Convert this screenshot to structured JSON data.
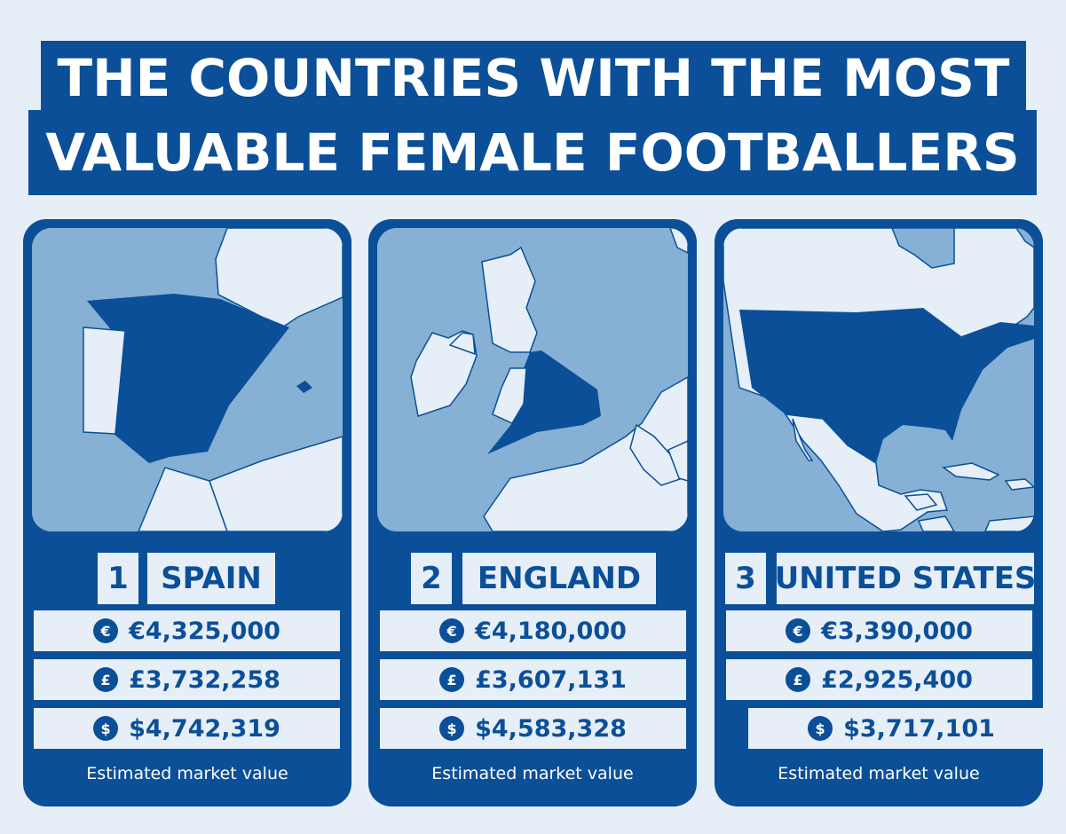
{
  "title": {
    "line1": "THE COUNTRIES WITH THE MOST",
    "line2": "VALUABLE FEMALE FOOTBALLERS"
  },
  "colors": {
    "primary": "#0b4f98",
    "background": "#e6eef7",
    "sea": "#86b0d4",
    "land": "#e6eef7",
    "highlight": "#0b4f98"
  },
  "cards": [
    {
      "rank": "1",
      "country": "SPAIN",
      "euro": "€4,325,000",
      "pound": "£3,732,258",
      "dollar": "$4,742,319",
      "caption": "Estimated market value"
    },
    {
      "rank": "2",
      "country": "ENGLAND",
      "euro": "€4,180,000",
      "pound": "£3,607,131",
      "dollar": "$4,583,328",
      "caption": "Estimated market value"
    },
    {
      "rank": "3",
      "country": "UNITED STATES",
      "euro": "€3,390,000",
      "pound": "£2,925,400",
      "dollar": "$3,717,101",
      "caption": "Estimated market value"
    }
  ],
  "icons": {
    "euro": "€",
    "pound": "£",
    "dollar": "$"
  }
}
